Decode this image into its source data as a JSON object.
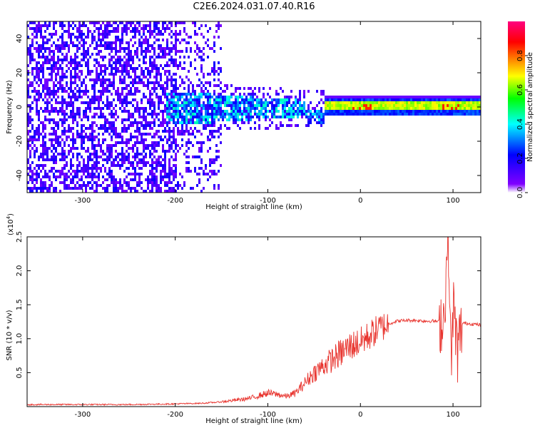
{
  "title": "C2E6.2024.031.07.40.R16",
  "chart_data": [
    {
      "type": "heatmap",
      "xlabel": "Height of straight line (km)",
      "ylabel": "Frequency (Hz)",
      "xlim": [
        -360,
        130
      ],
      "ylim": [
        -50,
        50
      ],
      "x_ticks": [
        "-300",
        "-200",
        "-100",
        "0",
        "100"
      ],
      "y_ticks": [
        "-40",
        "-20",
        "0",
        "20",
        "40"
      ],
      "colorbar": {
        "label": "Normalized spectral amplitude",
        "ticks": [
          "0.0",
          "0.2",
          "0.4",
          "0.6",
          "0.8"
        ],
        "range": [
          0,
          1
        ],
        "colormap": [
          "#ffffff",
          "#8000ff",
          "#0000ff",
          "#00ffff",
          "#00ff00",
          "#ffff00",
          "#ff8000",
          "#ff0000",
          "#ff0080"
        ]
      },
      "structure": [
        {
          "region": "noise",
          "x_range": [
            -360,
            -150
          ],
          "frequency_range": [
            -50,
            50
          ],
          "amplitude": "low (0.1-0.2)"
        },
        {
          "region": "transition",
          "x_range": [
            -210,
            -40
          ],
          "frequency_center": 0,
          "frequency_halfwidth": 10,
          "amplitude": "medium (0.3-0.5)"
        },
        {
          "region": "signal band",
          "x_range": [
            -40,
            130
          ],
          "frequency_center": 0,
          "frequency_halfwidth": 3,
          "amplitude": "high (0.6-0.9)"
        }
      ]
    },
    {
      "type": "line",
      "xlabel": "Height of straight line (km)",
      "ylabel": "SNR (10 * v/v)",
      "y_scale_note": "(x10",
      "y_scale_exp": "4",
      "xlim": [
        -360,
        130
      ],
      "ylim": [
        0,
        2.5
      ],
      "x_ticks": [
        "-300",
        "-200",
        "-100",
        "0",
        "100"
      ],
      "y_ticks": [
        "0.5",
        "1.0",
        "1.5",
        "2.0",
        "2.5"
      ],
      "series_color": "#e8332d",
      "x": [
        -360,
        -300,
        -250,
        -200,
        -170,
        -150,
        -120,
        -100,
        -90,
        -80,
        -70,
        -60,
        -50,
        -40,
        -30,
        -20,
        -10,
        0,
        10,
        20,
        30,
        40,
        50,
        60,
        70,
        80,
        85,
        90,
        95,
        98,
        100,
        105,
        110,
        120,
        130
      ],
      "y": [
        0.03,
        0.03,
        0.03,
        0.04,
        0.05,
        0.07,
        0.12,
        0.2,
        0.18,
        0.15,
        0.2,
        0.35,
        0.5,
        0.6,
        0.7,
        0.8,
        0.9,
        0.95,
        1.05,
        1.15,
        1.22,
        1.26,
        1.27,
        1.27,
        1.26,
        1.26,
        1.25,
        1.3,
        2.5,
        0.5,
        1.5,
        0.8,
        1.23,
        1.22,
        1.2
      ]
    }
  ]
}
